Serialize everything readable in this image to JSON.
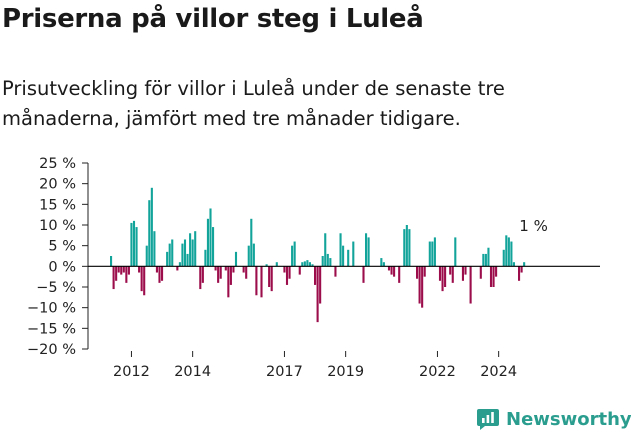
{
  "title": "Priserna på villor steg i Luleå",
  "subtitle": "Prisutveckling för villor i Luleå under de senaste tre månaderna, jämfört med tre månader tidigare.",
  "brand": {
    "name": "Newsworthy",
    "icon": "chart-bubble-icon"
  },
  "colors": {
    "positive": "#12a39b",
    "negative": "#9c0d4b",
    "axis": "#222222",
    "brand": "#2a9d8f"
  },
  "chart_data": {
    "type": "bar",
    "title": "",
    "xlabel": "",
    "ylabel": "",
    "ylim": [
      -20,
      25
    ],
    "y_ticks": [
      25,
      20,
      15,
      10,
      5,
      0,
      -5,
      -10,
      -15,
      -20
    ],
    "y_tick_labels": [
      "25 %",
      "20 %",
      "15 %",
      "10 %",
      "5 %",
      "0 %",
      "−5 %",
      "−10 %",
      "−15 %",
      "−20 %"
    ],
    "x_ticks": [
      {
        "label": "2012",
        "index": 8
      },
      {
        "label": "2014",
        "index": 32
      },
      {
        "label": "2017",
        "index": 68
      },
      {
        "label": "2019",
        "index": 92
      },
      {
        "label": "2022",
        "index": 128
      },
      {
        "label": "2024",
        "index": 152
      }
    ],
    "grid": false,
    "legend": "none",
    "annotation": {
      "text": "1 %",
      "index": 166
    },
    "series": [
      {
        "values": [
          2.5,
          -5.5,
          -3.5,
          -1.5,
          -2,
          -1.5,
          -4,
          -2,
          10.5,
          11,
          9.5,
          -1.5,
          -6,
          -7,
          5,
          16,
          19,
          8.5,
          -1.5,
          -4,
          -3.5,
          0,
          3.5,
          5.5,
          6.5,
          0,
          -1,
          1,
          5.5,
          6.5,
          3,
          8,
          6.5,
          8.5,
          0,
          -5.5,
          -4,
          4,
          11.5,
          14,
          9.5,
          -1,
          -4,
          -3,
          0,
          -1,
          -7.5,
          -4.5,
          -1.5,
          3.5,
          0,
          0,
          -1.5,
          -3,
          5,
          11.5,
          5.5,
          -7,
          0,
          -7.5,
          0,
          0.5,
          -5,
          -6,
          0,
          1,
          0,
          0,
          -1.5,
          -4.5,
          -3,
          5,
          6,
          0,
          -2,
          1,
          1.2,
          1.5,
          1,
          0.5,
          -4.5,
          -13.5,
          -9,
          2.5,
          8,
          3,
          2,
          0,
          -2.5,
          0,
          8,
          5,
          0,
          4,
          0,
          6,
          0,
          0,
          0,
          -4,
          8,
          7,
          0,
          0,
          0,
          0,
          2,
          1,
          0,
          -1,
          -2,
          -2.5,
          0,
          -4,
          0,
          9,
          10,
          9,
          0,
          0,
          -3,
          -9,
          -10,
          -2.5,
          0,
          6,
          6,
          7,
          0,
          -3.5,
          -6,
          -5,
          0,
          -2,
          -4,
          7,
          0,
          0,
          -3.5,
          -2,
          0,
          -9,
          0,
          0,
          0,
          -3,
          3,
          3,
          4.5,
          -5,
          -5,
          -2.5,
          0,
          0,
          4,
          7.5,
          7,
          6,
          1,
          0,
          -3.5,
          -1.5,
          1
        ]
      }
    ]
  }
}
